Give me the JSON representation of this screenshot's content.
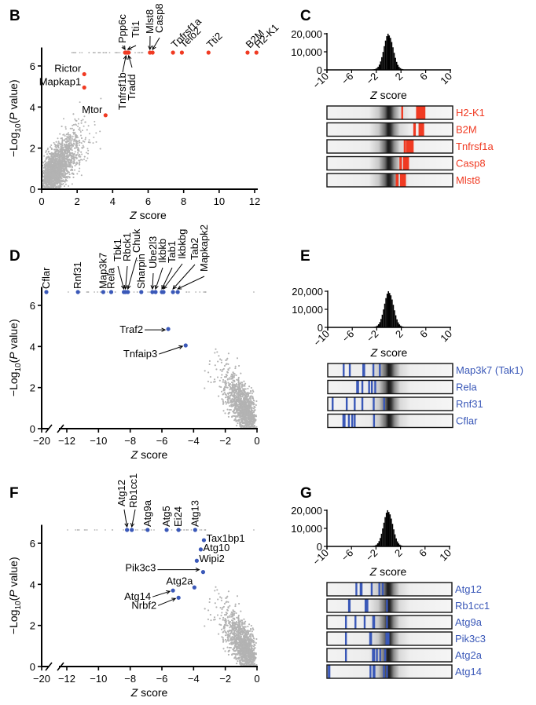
{
  "figure": {
    "panels": [
      "B",
      "C",
      "D",
      "E",
      "F",
      "G"
    ]
  },
  "colors": {
    "highlight_red": "#f03a22",
    "highlight_blue": "#3a58b8",
    "background_points": "#b3b3b3",
    "axis": "#000000",
    "histogram": "#000000",
    "strip_background": "#f0f0f0"
  },
  "chart_data": [
    {
      "panel": "B",
      "type": "scatter",
      "title": "",
      "xlabel": "Z score",
      "ylabel": "−Log10(P value)",
      "xlim": [
        0,
        12.4
      ],
      "ylim": [
        0,
        6.9
      ],
      "xticks": [
        "0",
        "2",
        "4",
        "6",
        "8",
        "10",
        "12"
      ],
      "yticks": [
        "0",
        "2",
        "4",
        "6"
      ],
      "cloud_shape": "positive",
      "highlight_color": "#f03a22",
      "points": [
        {
          "label": "Ppp6c",
          "x": 4.7,
          "y": 6.65,
          "style": "arrow-top"
        },
        {
          "label": "Tti1",
          "x": 4.85,
          "y": 6.65,
          "style": "arrow-top"
        },
        {
          "label": "Tnfrsf1b",
          "x": 4.75,
          "y": 6.65,
          "style": "arrow-bottom"
        },
        {
          "label": "Tradd",
          "x": 4.9,
          "y": 6.65,
          "style": "arrow-bottom"
        },
        {
          "label": "Mlst8",
          "x": 6.1,
          "y": 6.65,
          "style": "arrow-top"
        },
        {
          "label": "Casp8",
          "x": 6.25,
          "y": 6.65,
          "style": "arrow-top"
        },
        {
          "label": "Tnfrsf1a",
          "x": 7.4,
          "y": 6.65,
          "style": "diag"
        },
        {
          "label": "Telo2",
          "x": 7.9,
          "y": 6.65,
          "style": "diag"
        },
        {
          "label": "Tti2",
          "x": 9.4,
          "y": 6.65,
          "style": "diag"
        },
        {
          "label": "B2M",
          "x": 11.6,
          "y": 6.65,
          "style": "diag"
        },
        {
          "label": "H2-K1",
          "x": 12.1,
          "y": 6.65,
          "style": "diag"
        },
        {
          "label": "Rictor",
          "x": 2.4,
          "y": 5.6,
          "style": "left"
        },
        {
          "label": "Mapkap1",
          "x": 2.4,
          "y": 4.95,
          "style": "left"
        },
        {
          "label": "Mtor",
          "x": 3.6,
          "y": 3.6,
          "style": "left"
        }
      ]
    },
    {
      "panel": "C",
      "type": "bar",
      "title": "",
      "xlabel": "Z score",
      "ylabel": "",
      "xticks": [
        "−10",
        "−6",
        "−2",
        "2",
        "6",
        "10"
      ],
      "yticks": [
        "0",
        "10,000",
        "20,000"
      ],
      "xlim": [
        -10,
        10
      ],
      "ylim": [
        0,
        20000
      ],
      "histogram": {
        "center": 0,
        "peak": 20000,
        "sd": 0.75
      },
      "strips": {
        "color": "#f03a22",
        "rows": [
          {
            "label": "H2-K1",
            "values": [
              2.2,
              4.6,
              4.85,
              5.1,
              5.3,
              5.55,
              5.8
            ]
          },
          {
            "label": "B2M",
            "values": [
              4.15,
              4.25,
              5.0,
              5.15,
              5.3,
              5.45,
              5.6
            ]
          },
          {
            "label": "Tnfrsf1a",
            "values": [
              2.6,
              2.95,
              3.1,
              3.3,
              3.5,
              3.7,
              3.9
            ]
          },
          {
            "label": "Casp8",
            "values": [
              1.9,
              2.0,
              2.5,
              2.65,
              2.8,
              3.0,
              3.15
            ]
          },
          {
            "label": "Mlst8",
            "values": [
              1.3,
              1.45,
              2.0,
              2.15,
              2.3,
              2.5,
              2.65
            ]
          }
        ]
      }
    },
    {
      "panel": "D",
      "type": "scatter",
      "title": "",
      "xlabel": "Z score",
      "ylabel": "−Log10(P value)",
      "xlim": [
        -12,
        0
      ],
      "x_break": {
        "from": -20,
        "to": -12
      },
      "ylim": [
        0,
        6.9
      ],
      "xticks": [
        "−20",
        "−12",
        "−10",
        "−8",
        "−6",
        "−4",
        "−2",
        "0"
      ],
      "yticks": [
        "0",
        "2",
        "4",
        "6"
      ],
      "cloud_shape": "negative",
      "highlight_color": "#3a58b8",
      "points": [
        {
          "label": "Cflar",
          "x": -18.5,
          "y": 6.65,
          "style": "vertical"
        },
        {
          "label": "Rnf31",
          "x": -11.3,
          "y": 6.65,
          "style": "vertical"
        },
        {
          "label": "Map3k7",
          "x": -9.7,
          "y": 6.65,
          "style": "vertical"
        },
        {
          "label": "Rela",
          "x": -9.2,
          "y": 6.65,
          "style": "vertical"
        },
        {
          "label": "Tbk1",
          "x": -8.4,
          "y": 6.65,
          "style": "arrow"
        },
        {
          "label": "Rbck1",
          "x": -8.3,
          "y": 6.65,
          "style": "arrow"
        },
        {
          "label": "Chuk",
          "x": -8.15,
          "y": 6.65,
          "style": "arrow"
        },
        {
          "label": "Sharpin",
          "x": -7.3,
          "y": 6.65,
          "style": "vertical"
        },
        {
          "label": "Ube2l3",
          "x": -6.6,
          "y": 6.65,
          "style": "arrow"
        },
        {
          "label": "Ikbkb",
          "x": -6.4,
          "y": 6.65,
          "style": "arrow"
        },
        {
          "label": "Tab1",
          "x": -6.0,
          "y": 6.65,
          "style": "arrow"
        },
        {
          "label": "Ikbkbg",
          "x": -5.9,
          "y": 6.65,
          "style": "arrow"
        },
        {
          "label": "Tab2",
          "x": -5.3,
          "y": 6.65,
          "style": "arrow"
        },
        {
          "label": "Mapkapk2",
          "x": -5.0,
          "y": 6.65,
          "style": "arrow"
        },
        {
          "label": "Traf2",
          "x": -5.6,
          "y": 4.85,
          "style": "arrow-left"
        },
        {
          "label": "Tnfaip3",
          "x": -4.5,
          "y": 4.05,
          "style": "arrow-left"
        }
      ]
    },
    {
      "panel": "E",
      "type": "bar",
      "title": "",
      "xlabel": "Z score",
      "ylabel": "",
      "xticks": [
        "−10",
        "−6",
        "−2",
        "2",
        "6",
        "10"
      ],
      "yticks": [
        "0",
        "10,000",
        "20,000"
      ],
      "xlim": [
        -10,
        10
      ],
      "ylim": [
        0,
        20000
      ],
      "histogram": {
        "center": 0,
        "peak": 20000,
        "sd": 0.75
      },
      "strips": {
        "color": "#3a58b8",
        "rows": [
          {
            "label": "Map3k7 (Tak1)",
            "values": [
              -7.4,
              -6.4,
              -4.2,
              -4.05,
              -2.55,
              -1.5
            ]
          },
          {
            "label": "Rela",
            "values": [
              -5.2,
              -5.05,
              -4.35,
              -3.25,
              -2.8,
              -2.25
            ]
          },
          {
            "label": "Rnf31",
            "values": [
              -9.2,
              -6.9,
              -5.6,
              -4.35,
              -2.5,
              -0.8
            ]
          },
          {
            "label": "Cflar",
            "values": [
              -7.45,
              -7.25,
              -6.55,
              -6.0,
              -5.6,
              -2.45
            ]
          }
        ]
      }
    },
    {
      "panel": "F",
      "type": "scatter",
      "title": "",
      "xlabel": "Z score",
      "ylabel": "−Log10(P value)",
      "xlim": [
        -12,
        0
      ],
      "x_break": {
        "from": -20,
        "to": -12
      },
      "ylim": [
        0,
        6.9
      ],
      "xticks": [
        "−20",
        "−12",
        "−10",
        "−8",
        "−6",
        "−4",
        "−2",
        "0"
      ],
      "yticks": [
        "0",
        "2",
        "4",
        "6"
      ],
      "cloud_shape": "negative",
      "highlight_color": "#3a58b8",
      "points": [
        {
          "label": "Atg12",
          "x": -8.2,
          "y": 6.65,
          "style": "arrow"
        },
        {
          "label": "Rb1cc1",
          "x": -7.9,
          "y": 6.65,
          "style": "arrow"
        },
        {
          "label": "Atg9a",
          "x": -6.9,
          "y": 6.65,
          "style": "vertical"
        },
        {
          "label": "Atg5",
          "x": -5.7,
          "y": 6.65,
          "style": "vertical"
        },
        {
          "label": "Ei24",
          "x": -4.95,
          "y": 6.65,
          "style": "vertical"
        },
        {
          "label": "Atg13",
          "x": -3.9,
          "y": 6.65,
          "style": "vertical"
        },
        {
          "label": "Tax1bp1",
          "x": -3.35,
          "y": 6.15,
          "style": "right"
        },
        {
          "label": "Atg10",
          "x": -3.55,
          "y": 5.7,
          "style": "right"
        },
        {
          "label": "Wipi2",
          "x": -3.8,
          "y": 5.15,
          "style": "right"
        },
        {
          "label": "Pik3c3",
          "x": -3.4,
          "y": 4.6,
          "style": "arrow-left"
        },
        {
          "label": "Atg2a",
          "x": -3.95,
          "y": 3.85,
          "style": "above"
        },
        {
          "label": "Atg14",
          "x": -5.3,
          "y": 3.7,
          "style": "arrow-left"
        },
        {
          "label": "Nrbf2",
          "x": -4.95,
          "y": 3.35,
          "style": "arrow-left"
        }
      ]
    },
    {
      "panel": "G",
      "type": "bar",
      "title": "",
      "xlabel": "Z score",
      "ylabel": "",
      "xticks": [
        "−10",
        "−6",
        "−2",
        "2",
        "6",
        "10"
      ],
      "yticks": [
        "0",
        "10,000",
        "20,000"
      ],
      "xlim": [
        -10,
        10
      ],
      "ylim": [
        0,
        20000
      ],
      "histogram": {
        "center": 0,
        "peak": 20000,
        "sd": 0.75
      },
      "strips": {
        "color": "#3a58b8",
        "rows": [
          {
            "label": "Atg12",
            "values": [
              -5.2,
              -4.5,
              -4.35,
              -2.7,
              -1.45,
              -0.9
            ]
          },
          {
            "label": "Rb1cc1",
            "values": [
              -6.4,
              -6.3,
              -3.7,
              -3.55,
              -3.4,
              -0.2
            ]
          },
          {
            "label": "Atg9a",
            "values": [
              -6.9,
              -5.35,
              -3.85,
              -2.45,
              -2.3,
              -0.2
            ]
          },
          {
            "label": "Pik3c3",
            "values": [
              -6.9,
              -2.95,
              -2.8,
              -0.3,
              -0.15,
              0.05
            ]
          },
          {
            "label": "Atg2a",
            "values": [
              -6.9,
              -2.5,
              -2.3,
              -1.85,
              -1.3,
              -0.5
            ]
          },
          {
            "label": "Atg14",
            "values": [
              -9.7,
              -9.6,
              -2.9,
              -2.4,
              -2.25,
              -0.7,
              -0.2
            ]
          }
        ]
      }
    }
  ],
  "panel_letters": {
    "B": "B",
    "C": "C",
    "D": "D",
    "E": "E",
    "F": "F",
    "G": "G"
  }
}
